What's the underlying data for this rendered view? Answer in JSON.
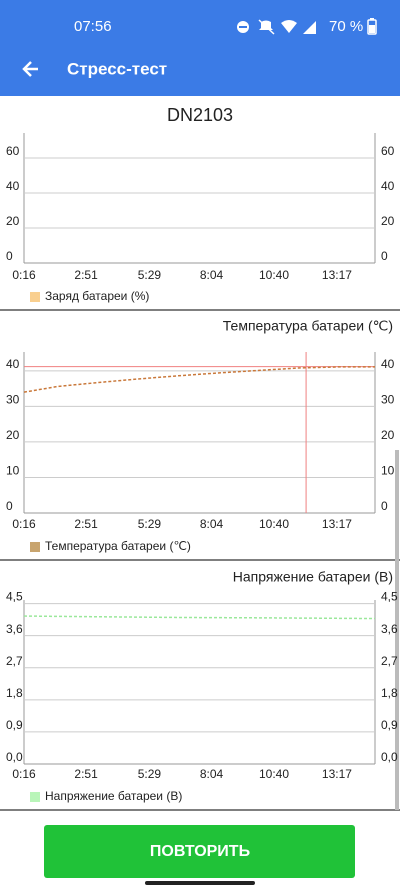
{
  "status_bar": {
    "time": "07:56",
    "battery": "70 %"
  },
  "app_bar": {
    "title": "Стресс-тест"
  },
  "device_name": "DN2103",
  "chart_data": [
    {
      "type": "line",
      "title": null,
      "series": [
        {
          "name": "Заряд батареи (%)",
          "color": "#f9cf8f",
          "x": [],
          "values": []
        }
      ],
      "xlim": [
        16,
        892
      ],
      "ylim": [
        0,
        74.3
      ],
      "xticks": [
        {
          "value": 16,
          "label": "0:16"
        },
        {
          "value": 171,
          "label": "2:51"
        },
        {
          "value": 329,
          "label": "5:29"
        },
        {
          "value": 484,
          "label": "8:04"
        },
        {
          "value": 640,
          "label": "10:40"
        },
        {
          "value": 797,
          "label": "13:17"
        }
      ],
      "yticks": [
        0,
        20,
        40,
        60
      ],
      "grid": true
    },
    {
      "type": "line",
      "title": "Температура батареи (℃)",
      "series": [
        {
          "name": "Температура батареи (℃)",
          "color": "#c8a46e",
          "line_color": "#c9783a",
          "x": [
            16,
            100,
            200,
            300,
            400,
            500,
            600,
            700,
            800,
            892
          ],
          "values": [
            34,
            35.6,
            36.7,
            37.7,
            38.6,
            39.4,
            40.1,
            40.8,
            41.1,
            41.1
          ]
        }
      ],
      "highlight": {
        "x": 720,
        "y": 41.2,
        "color": "#f08080"
      },
      "xlim": [
        16,
        892
      ],
      "ylim": [
        0,
        45.3
      ],
      "xticks": [
        {
          "value": 16,
          "label": "0:16"
        },
        {
          "value": 171,
          "label": "2:51"
        },
        {
          "value": 329,
          "label": "5:29"
        },
        {
          "value": 484,
          "label": "8:04"
        },
        {
          "value": 640,
          "label": "10:40"
        },
        {
          "value": 797,
          "label": "13:17"
        }
      ],
      "yticks": [
        0,
        10,
        20,
        30,
        40
      ],
      "grid": true
    },
    {
      "type": "line",
      "title": "Напряжение батареи (В)",
      "series": [
        {
          "name": "Напряжение батареи (В)",
          "color": "#b9f5b9",
          "line_color": "#9be89b",
          "x": [
            16,
            200,
            400,
            600,
            892
          ],
          "values": [
            4.15,
            4.13,
            4.11,
            4.1,
            4.08
          ]
        }
      ],
      "xlim": [
        16,
        892
      ],
      "ylim": [
        0,
        4.6
      ],
      "xticks": [
        {
          "value": 16,
          "label": "0:16"
        },
        {
          "value": 171,
          "label": "2:51"
        },
        {
          "value": 329,
          "label": "5:29"
        },
        {
          "value": 484,
          "label": "8:04"
        },
        {
          "value": 640,
          "label": "10:40"
        },
        {
          "value": 797,
          "label": "13:17"
        }
      ],
      "yticks": [
        {
          "value": 0,
          "label": "0,0"
        },
        {
          "value": 0.9,
          "label": "0,9"
        },
        {
          "value": 1.8,
          "label": "1,8"
        },
        {
          "value": 2.7,
          "label": "2,7"
        },
        {
          "value": 3.6,
          "label": "3,6"
        },
        {
          "value": 4.5,
          "label": "4,5"
        }
      ],
      "grid": true
    }
  ],
  "button": {
    "label": "ПОВТОРИТЬ"
  }
}
